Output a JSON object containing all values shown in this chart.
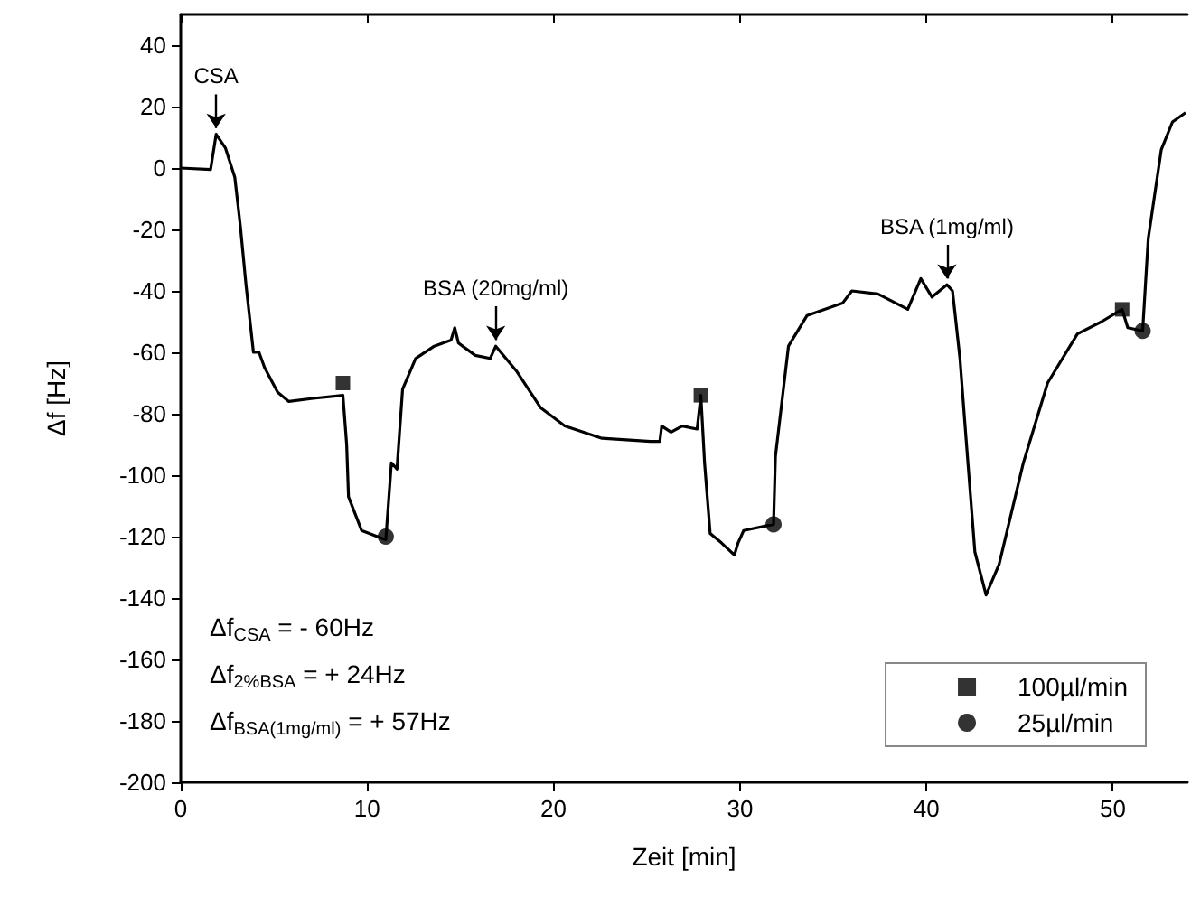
{
  "chart_data": {
    "type": "line",
    "xlabel": "Zeit [min]",
    "ylabel": "Δf [Hz]",
    "xlim": [
      0,
      54
    ],
    "ylim": [
      -200,
      50
    ],
    "xticks": [
      0,
      10,
      20,
      30,
      40,
      50
    ],
    "yticks": [
      -200,
      -180,
      -160,
      -140,
      -120,
      -100,
      -80,
      -60,
      -40,
      -20,
      0,
      20,
      40
    ],
    "grid": false,
    "legend": "bottom right",
    "series": [
      {
        "color": "#000000",
        "marker": "none",
        "x": [
          0,
          1.6,
          1.9,
          2.4,
          2.9,
          3.2,
          3.5,
          3.9,
          4.2,
          4.5,
          5.2,
          5.8,
          7.1,
          8.7,
          8.9,
          9.0,
          9.7,
          11.0,
          11.3,
          11.6,
          11.9,
          12.6,
          13.6,
          14.5,
          14.7,
          14.9,
          15.8,
          16.6,
          16.9,
          18.0,
          19.3,
          20.6,
          22.6,
          25.2,
          25.7,
          25.8,
          26.3,
          26.9,
          27.7,
          27.9,
          28.1,
          28.4,
          29.0,
          29.7,
          29.9,
          30.2,
          31.8,
          31.9,
          32.6,
          33.6,
          35.5,
          36.0,
          37.4,
          39.0,
          39.7,
          40.3,
          41.1,
          41.4,
          41.8,
          42.1,
          42.6,
          43.2,
          43.9,
          45.2,
          46.5,
          48.1,
          49.4,
          50.5,
          50.8,
          51.6,
          51.9,
          52.6,
          53.2,
          53.9
        ],
        "values": [
          0,
          -0.5,
          11,
          6.5,
          -3,
          -19,
          -38,
          -60,
          -60,
          -65,
          -73,
          -76,
          -75,
          -74,
          -90,
          -107,
          -118,
          -121,
          -96,
          -98,
          -72,
          -62,
          -58,
          -56,
          -52,
          -57,
          -61,
          -62,
          -58,
          -66,
          -78,
          -84,
          -88,
          -89,
          -89,
          -84,
          -86,
          -84,
          -85,
          -74,
          -96,
          -119,
          -122,
          -126,
          -122,
          -118,
          -116,
          -94,
          -58,
          -48,
          -44,
          -40,
          -41,
          -46,
          -36,
          -42,
          -38,
          -40,
          -62,
          -86,
          -125,
          -139,
          -129,
          -96,
          -70,
          -54,
          -50,
          -46,
          -52,
          -53,
          -23,
          6,
          15,
          18
        ]
      },
      {
        "type": "scatter",
        "name": "100µl/min",
        "color": "#000000",
        "marker": "square",
        "x": [
          8.7,
          27.9,
          50.5
        ],
        "values": [
          -70,
          -74,
          -46
        ]
      },
      {
        "type": "scatter",
        "name": "25µl/min",
        "color": "#000000",
        "marker": "circle",
        "x": [
          11.0,
          31.8,
          51.6
        ],
        "values": [
          -120,
          -116,
          -53
        ]
      }
    ],
    "annotations": [
      {
        "text": "CSA",
        "x": 1.9,
        "y": 11
      },
      {
        "text": "BSA (20mg/ml)",
        "x": 16.9,
        "y": -58
      },
      {
        "text": "BSA (1mg/ml)",
        "x": 41.1,
        "y": -38
      },
      "Δf$_{CSA}$ = - 60Hz",
      "Δf$_{2%BSA}$ = + 24Hz",
      "Δf$_{BSA(1mg/ml)}$ = + 57Hz"
    ]
  }
}
